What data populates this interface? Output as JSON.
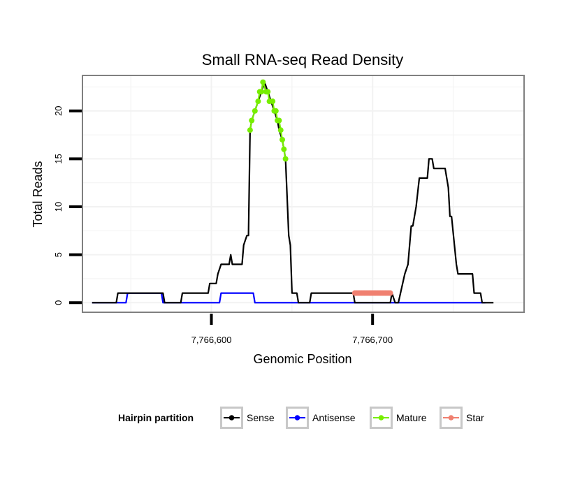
{
  "chart_data": {
    "type": "line",
    "title": "Small RNA-seq Read Density",
    "xlabel": "Genomic Position",
    "ylabel": "Total Reads",
    "xlim": [
      7766520,
      7766794
    ],
    "ylim": [
      -1,
      23.7
    ],
    "x_ticks": [
      {
        "value": 7766600,
        "label": "7,766,600"
      },
      {
        "value": 7766700,
        "label": "7,766,700"
      }
    ],
    "y_ticks": [
      {
        "value": 0,
        "label": "0"
      },
      {
        "value": 5,
        "label": "5"
      },
      {
        "value": 10,
        "label": "10"
      },
      {
        "value": 15,
        "label": "15"
      },
      {
        "value": 20,
        "label": "20"
      }
    ],
    "grid": true,
    "legend": {
      "title": "Hairpin partition",
      "position": "bottom",
      "entries": [
        "Sense",
        "Antisense",
        "Mature",
        "Star"
      ]
    },
    "colors": {
      "Sense": "#000000",
      "Antisense": "#0000ff",
      "Mature": "#77ee00",
      "Star": "#f08070",
      "panel_border": "#808080",
      "grid": "#f2f2f2"
    },
    "series": [
      {
        "name": "Sense",
        "points": [
          [
            7766526,
            0
          ],
          [
            7766541,
            0
          ],
          [
            7766542,
            1
          ],
          [
            7766556,
            1
          ],
          [
            7766557,
            1
          ],
          [
            7766570,
            1
          ],
          [
            7766571,
            0
          ],
          [
            7766581,
            0
          ],
          [
            7766582,
            1
          ],
          [
            7766598,
            1
          ],
          [
            7766599,
            2
          ],
          [
            7766603,
            2
          ],
          [
            7766604,
            3
          ],
          [
            7766606,
            4
          ],
          [
            7766611,
            4
          ],
          [
            7766612,
            5
          ],
          [
            7766613,
            4
          ],
          [
            7766619,
            4
          ],
          [
            7766620,
            6
          ],
          [
            7766622,
            7
          ],
          [
            7766623,
            7
          ],
          [
            7766624,
            18
          ],
          [
            7766625,
            19
          ],
          [
            7766627,
            20
          ],
          [
            7766629,
            21
          ],
          [
            7766631,
            22
          ],
          [
            7766633,
            23
          ],
          [
            7766635,
            22
          ],
          [
            7766637,
            21
          ],
          [
            7766639,
            20
          ],
          [
            7766641,
            19
          ],
          [
            7766642,
            18
          ],
          [
            7766644,
            17
          ],
          [
            7766645,
            16
          ],
          [
            7766646,
            15
          ],
          [
            7766648,
            7
          ],
          [
            7766649,
            6
          ],
          [
            7766650,
            1
          ],
          [
            7766653,
            1
          ],
          [
            7766654,
            0
          ],
          [
            7766661,
            0
          ],
          [
            7766662,
            1
          ],
          [
            7766688,
            1
          ],
          [
            7766689,
            0
          ],
          [
            7766711,
            0
          ],
          [
            7766712,
            1
          ],
          [
            7766714,
            0
          ],
          [
            7766716,
            0
          ],
          [
            7766720,
            3
          ],
          [
            7766722,
            4
          ],
          [
            7766723,
            6
          ],
          [
            7766724,
            8
          ],
          [
            7766725,
            8
          ],
          [
            7766727,
            10
          ],
          [
            7766729,
            13
          ],
          [
            7766734,
            13
          ],
          [
            7766735,
            15
          ],
          [
            7766737,
            15
          ],
          [
            7766738,
            14
          ],
          [
            7766745,
            14
          ],
          [
            7766747,
            12
          ],
          [
            7766748,
            9
          ],
          [
            7766749,
            9
          ],
          [
            7766752,
            4
          ],
          [
            7766753,
            3
          ],
          [
            7766762,
            3
          ],
          [
            7766763,
            1
          ],
          [
            7766767,
            1
          ],
          [
            7766768,
            0
          ],
          [
            7766775,
            0
          ]
        ]
      },
      {
        "name": "Antisense",
        "points": [
          [
            7766526,
            0
          ],
          [
            7766547,
            0
          ],
          [
            7766548,
            1
          ],
          [
            7766563,
            1
          ],
          [
            7766565,
            1
          ],
          [
            7766569,
            1
          ],
          [
            7766570,
            0
          ],
          [
            7766605,
            0
          ],
          [
            7766606,
            1
          ],
          [
            7766626,
            1
          ],
          [
            7766627,
            0
          ],
          [
            7766770,
            0
          ]
        ]
      },
      {
        "name": "Mature",
        "points": [
          [
            7766624,
            18
          ],
          [
            7766625,
            19
          ],
          [
            7766627,
            20
          ],
          [
            7766629,
            21
          ],
          [
            7766630,
            22
          ],
          [
            7766631,
            22
          ],
          [
            7766632,
            23
          ],
          [
            7766634,
            22
          ],
          [
            7766635,
            22
          ],
          [
            7766636,
            21
          ],
          [
            7766638,
            21
          ],
          [
            7766639,
            20
          ],
          [
            7766640,
            20
          ],
          [
            7766641,
            19
          ],
          [
            7766642,
            19
          ],
          [
            7766643,
            18
          ],
          [
            7766644,
            17
          ],
          [
            7766645,
            16
          ],
          [
            7766646,
            15
          ]
        ]
      },
      {
        "name": "Star",
        "points": [
          [
            7766689,
            1
          ],
          [
            7766690,
            1
          ],
          [
            7766691,
            1
          ],
          [
            7766692,
            1
          ],
          [
            7766693,
            1
          ],
          [
            7766694,
            1
          ],
          [
            7766695,
            1
          ],
          [
            7766696,
            1
          ],
          [
            7766697,
            1
          ],
          [
            7766698,
            1
          ],
          [
            7766699,
            1
          ],
          [
            7766700,
            1
          ],
          [
            7766701,
            1
          ],
          [
            7766702,
            1
          ],
          [
            7766703,
            1
          ],
          [
            7766704,
            1
          ],
          [
            7766705,
            1
          ],
          [
            7766706,
            1
          ],
          [
            7766707,
            1
          ],
          [
            7766708,
            1
          ],
          [
            7766709,
            1
          ],
          [
            7766710,
            1
          ],
          [
            7766711,
            1
          ]
        ]
      }
    ]
  }
}
